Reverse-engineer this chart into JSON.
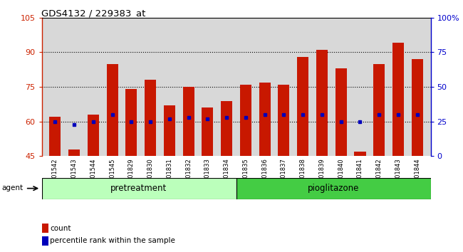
{
  "title": "GDS4132 / 229383_at",
  "samples": [
    "GSM201542",
    "GSM201543",
    "GSM201544",
    "GSM201545",
    "GSM201829",
    "GSM201830",
    "GSM201831",
    "GSM201832",
    "GSM201833",
    "GSM201834",
    "GSM201835",
    "GSM201836",
    "GSM201837",
    "GSM201838",
    "GSM201839",
    "GSM201840",
    "GSM201841",
    "GSM201842",
    "GSM201843",
    "GSM201844"
  ],
  "count_values": [
    62,
    48,
    63,
    85,
    74,
    78,
    67,
    75,
    66,
    69,
    76,
    77,
    76,
    88,
    91,
    83,
    47,
    85,
    94,
    87
  ],
  "percentile_values": [
    25,
    23,
    25,
    30,
    25,
    25,
    27,
    28,
    27,
    28,
    28,
    30,
    30,
    30,
    30,
    25,
    25,
    30,
    30,
    30
  ],
  "pretreatment_count": 10,
  "pioglitazone_count": 10,
  "ylim_left": [
    45,
    105
  ],
  "ylim_right": [
    0,
    100
  ],
  "yticks_left": [
    45,
    60,
    75,
    90,
    105
  ],
  "yticks_right": [
    0,
    25,
    50,
    75,
    100
  ],
  "ytick_right_labels": [
    "0",
    "25",
    "50",
    "75",
    "100%"
  ],
  "bar_color": "#c81800",
  "dot_color": "#0000bb",
  "grid_color": "#000000",
  "bg_color": "#d8d8d8",
  "pretreatment_color": "#bbffbb",
  "pioglitazone_color": "#44cc44",
  "agent_label": "agent",
  "pretreatment_label": "pretreatment",
  "pioglitazone_label": "pioglitazone",
  "legend_count": "count",
  "legend_percentile": "percentile rank within the sample",
  "left_axis_color": "#cc2200",
  "right_axis_color": "#0000cc",
  "bar_width": 0.6
}
